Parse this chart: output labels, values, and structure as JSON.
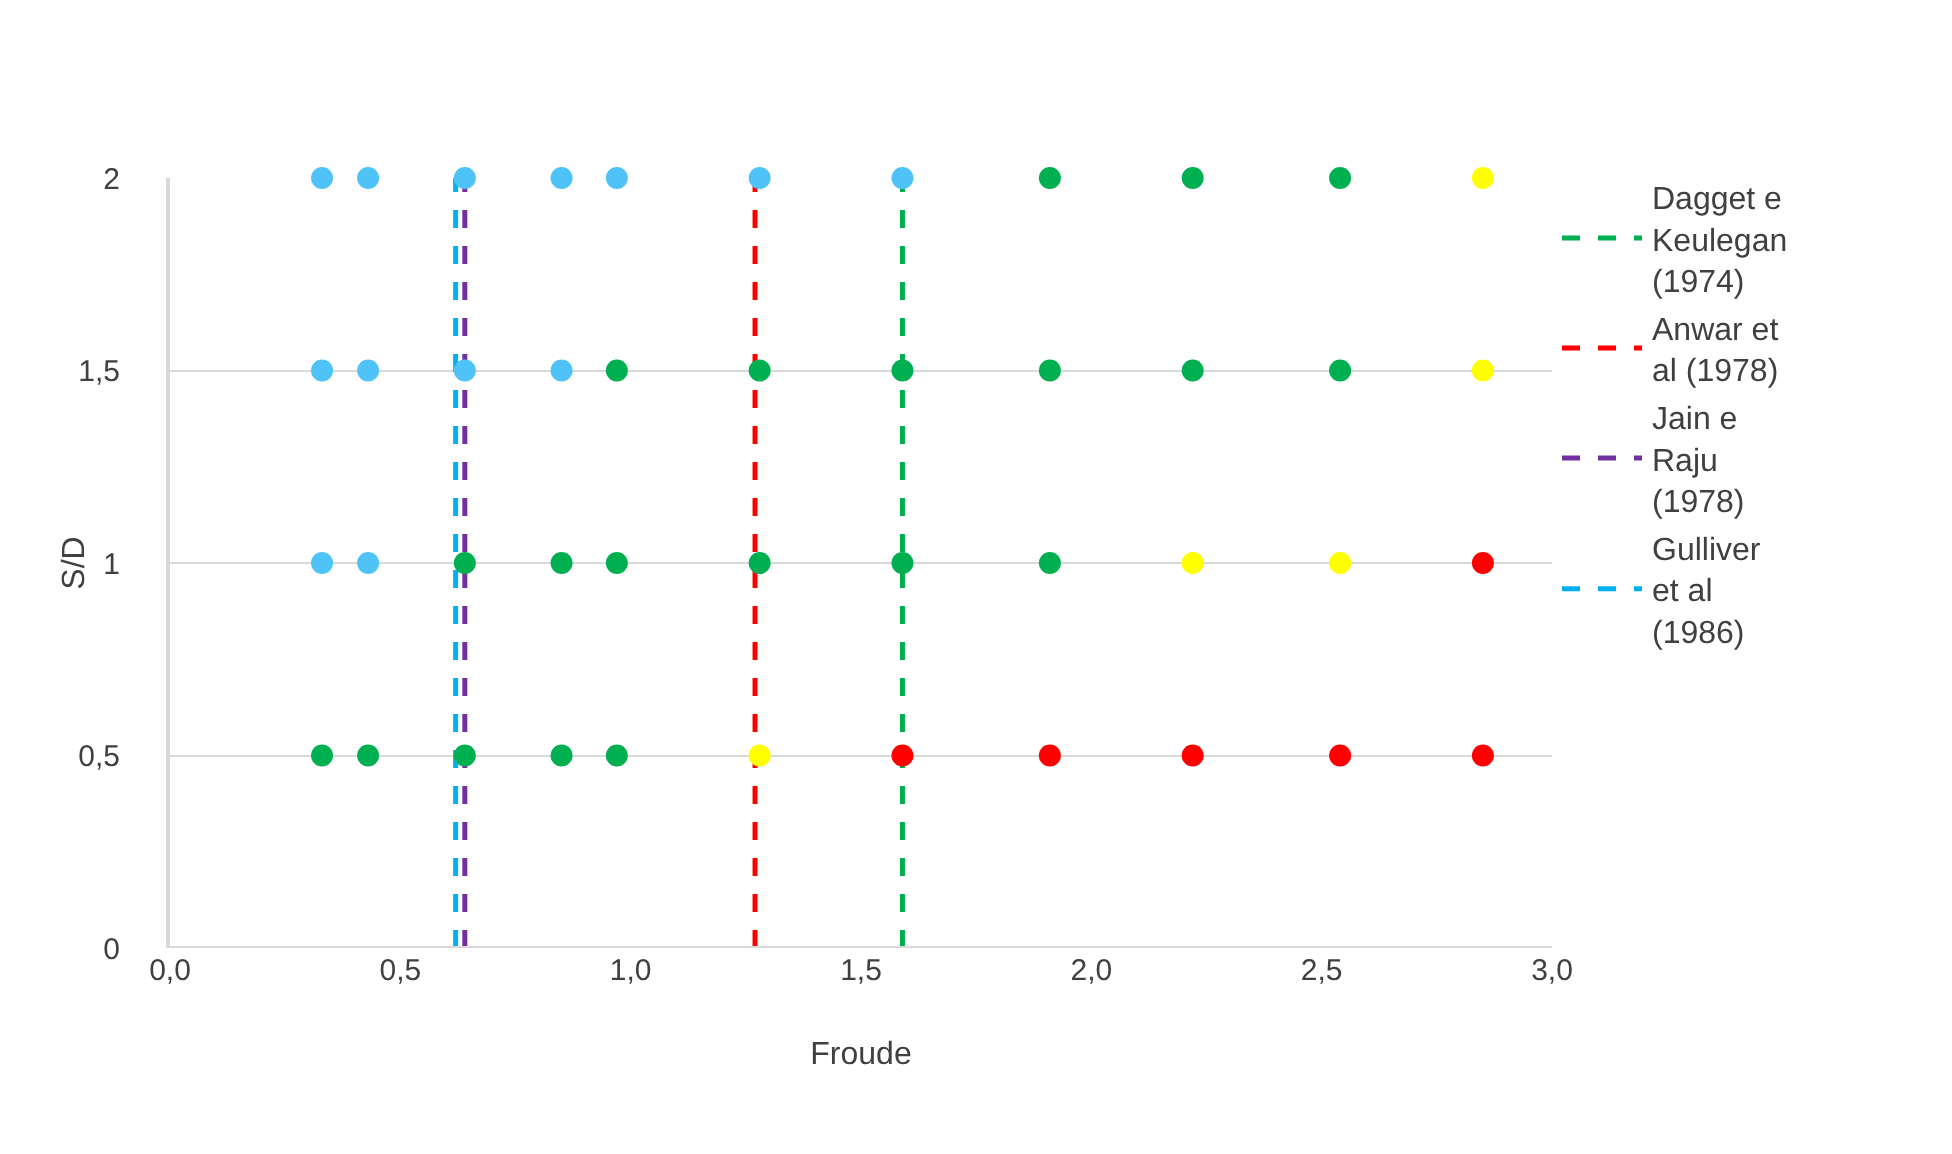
{
  "chart_data": {
    "type": "scatter",
    "xlabel": "Froude",
    "ylabel": "S/D",
    "xlim": [
      0,
      3
    ],
    "xticks": [
      {
        "value": 0,
        "label": "0,0"
      },
      {
        "value": 0.5,
        "label": "0,5"
      },
      {
        "value": 1,
        "label": "1,0"
      },
      {
        "value": 1.5,
        "label": "1,5"
      },
      {
        "value": 2,
        "label": "2,0"
      },
      {
        "value": 2.5,
        "label": "2,5"
      },
      {
        "value": 3,
        "label": "3,0"
      }
    ],
    "ylim": [
      0,
      2
    ],
    "yticks": [
      0,
      {
        "value": 0.5,
        "label": "0,5"
      },
      1,
      {
        "value": 1.5,
        "label": "1,5"
      },
      2
    ],
    "grid": "y",
    "legend": "right",
    "series": [
      {
        "marker": "circle",
        "color": "#4fc3f7",
        "x": [
          0.33,
          0.43,
          0.64,
          0.85,
          0.97,
          1.28,
          1.59,
          0.33,
          0.43,
          0.64,
          0.85,
          0.33,
          0.43
        ],
        "values": [
          2,
          2,
          2,
          2,
          2,
          2,
          2,
          1.5,
          1.5,
          1.5,
          1.5,
          1,
          1
        ]
      },
      {
        "marker": "circle",
        "color": "#00b050",
        "x": [
          1.91,
          2.22,
          2.54,
          0.97,
          1.28,
          1.59,
          1.91,
          2.22,
          2.54,
          0.64,
          0.85,
          0.97,
          1.28,
          1.59,
          1.91,
          0.33,
          0.43,
          0.64,
          0.85,
          0.97
        ],
        "values": [
          2,
          2,
          2,
          1.5,
          1.5,
          1.5,
          1.5,
          1.5,
          1.5,
          1,
          1,
          1,
          1,
          1,
          1,
          0.5,
          0.5,
          0.5,
          0.5,
          0.5
        ]
      },
      {
        "marker": "circle",
        "color": "#ffff00",
        "x": [
          2.85,
          2.85,
          2.22,
          2.54,
          1.28
        ],
        "values": [
          2,
          1.5,
          1,
          1,
          0.5
        ]
      },
      {
        "marker": "circle",
        "color": "#ff0000",
        "x": [
          2.85,
          1.59,
          1.91,
          2.22,
          2.54,
          2.85
        ],
        "values": [
          1,
          0.5,
          0.5,
          0.5,
          0.5,
          0.5
        ]
      },
      {
        "type": "line",
        "name": "Dagget e Keulegan (1974)",
        "color": "#00b050",
        "line_style": "dashed",
        "x": [
          1.59,
          1.59
        ],
        "values": [
          0,
          2
        ]
      },
      {
        "type": "line",
        "name": "Anwar et al (1978)",
        "color": "#ff0000",
        "line_style": "dashed",
        "x": [
          1.27,
          1.27
        ],
        "values": [
          0,
          2
        ]
      },
      {
        "type": "line",
        "name": "Jain e Raju (1978)",
        "color": "#7030a0",
        "line_style": "dashed",
        "x": [
          0.64,
          0.64
        ],
        "values": [
          0,
          2
        ]
      },
      {
        "type": "line",
        "name": "Gulliver et al (1986)",
        "color": "#00b0f0",
        "line_style": "dashed",
        "x": [
          0.62,
          0.62
        ],
        "values": [
          0,
          2
        ]
      }
    ]
  }
}
